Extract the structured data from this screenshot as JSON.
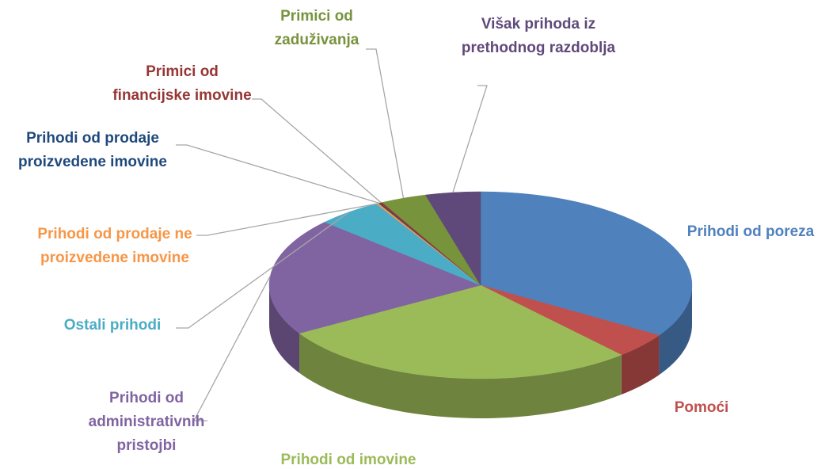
{
  "chart_data": {
    "type": "pie",
    "categories": [
      "Prihodi od poreza",
      "Pomoći",
      "Prihodi od imovine",
      "Prihodi od administrativnih pristojbi",
      "Ostali prihodi",
      "Prihodi od prodaje ne proizvedene imovine",
      "Prihodi od prodaje proizvedene imovine",
      "Primici od financijske imovine",
      "Primici od zaduživanja",
      "Višak prihoda iz prethodnog razdoblja"
    ],
    "values": [
      34,
      4.4,
      28,
      20.4,
      5,
      0.2,
      0.1,
      0.2,
      3.5,
      4.2
    ],
    "colors": [
      "#4f81bd",
      "#c0504d",
      "#9bbb59",
      "#8064a2",
      "#4bacc6",
      "#f79646",
      "#1f497d",
      "#953735",
      "#77933c",
      "#5f497a"
    ]
  }
}
